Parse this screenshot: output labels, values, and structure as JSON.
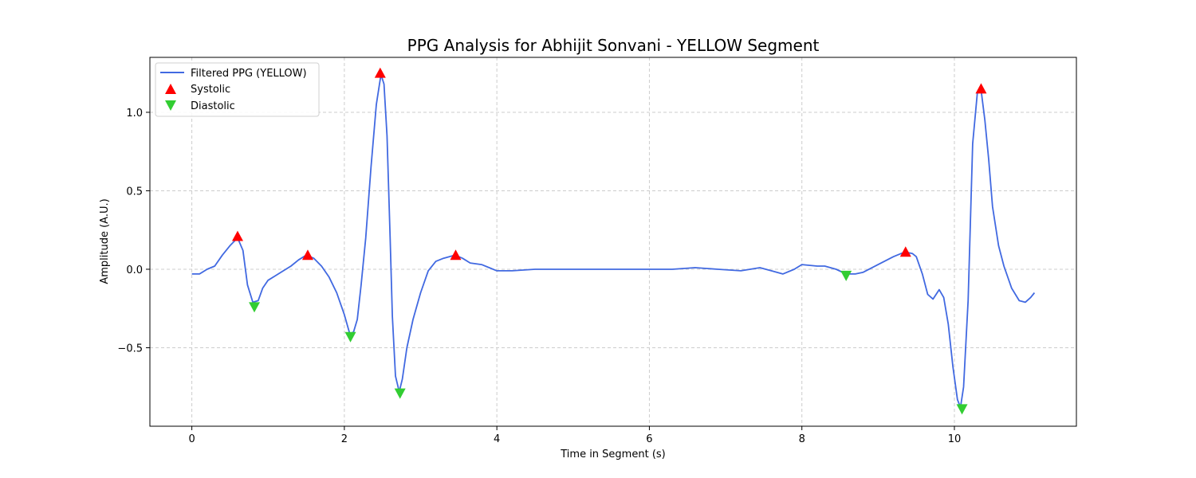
{
  "chart_data": {
    "type": "line",
    "title": "PPG Analysis for Abhijit Sonvani - YELLOW Segment",
    "xlabel": "Time in Segment (s)",
    "ylabel": "Amplitude (A.U.)",
    "xlim": [
      -0.55,
      11.6
    ],
    "ylim": [
      -1.0,
      1.35
    ],
    "x_ticks": [
      0,
      2,
      4,
      6,
      8,
      10
    ],
    "y_ticks": [
      -0.5,
      0.0,
      0.5,
      1.0
    ],
    "x_tick_labels": [
      "0",
      "2",
      "4",
      "6",
      "8",
      "10"
    ],
    "y_tick_labels": [
      "−0.5",
      "0.0",
      "0.5",
      "1.0"
    ],
    "grid": true,
    "legend_position": "top-left",
    "series": [
      {
        "name": "Filtered PPG (YELLOW)",
        "kind": "line",
        "color": "#4169E1",
        "points": [
          [
            0.0,
            -0.03
          ],
          [
            0.1,
            -0.03
          ],
          [
            0.2,
            0.0
          ],
          [
            0.3,
            0.02
          ],
          [
            0.4,
            0.09
          ],
          [
            0.5,
            0.15
          ],
          [
            0.6,
            0.2
          ],
          [
            0.67,
            0.12
          ],
          [
            0.73,
            -0.1
          ],
          [
            0.8,
            -0.21
          ],
          [
            0.87,
            -0.2
          ],
          [
            0.93,
            -0.12
          ],
          [
            1.0,
            -0.07
          ],
          [
            1.1,
            -0.04
          ],
          [
            1.2,
            -0.01
          ],
          [
            1.3,
            0.02
          ],
          [
            1.4,
            0.06
          ],
          [
            1.5,
            0.09
          ],
          [
            1.6,
            0.07
          ],
          [
            1.7,
            0.02
          ],
          [
            1.8,
            -0.05
          ],
          [
            1.9,
            -0.15
          ],
          [
            2.0,
            -0.29
          ],
          [
            2.07,
            -0.41
          ],
          [
            2.12,
            -0.4
          ],
          [
            2.17,
            -0.32
          ],
          [
            2.22,
            -0.1
          ],
          [
            2.28,
            0.2
          ],
          [
            2.35,
            0.65
          ],
          [
            2.42,
            1.05
          ],
          [
            2.48,
            1.24
          ],
          [
            2.52,
            1.18
          ],
          [
            2.56,
            0.85
          ],
          [
            2.6,
            0.2
          ],
          [
            2.63,
            -0.3
          ],
          [
            2.67,
            -0.68
          ],
          [
            2.72,
            -0.78
          ],
          [
            2.76,
            -0.7
          ],
          [
            2.82,
            -0.5
          ],
          [
            2.9,
            -0.32
          ],
          [
            3.0,
            -0.15
          ],
          [
            3.1,
            -0.01
          ],
          [
            3.2,
            0.05
          ],
          [
            3.3,
            0.07
          ],
          [
            3.45,
            0.09
          ],
          [
            3.55,
            0.07
          ],
          [
            3.65,
            0.04
          ],
          [
            3.8,
            0.03
          ],
          [
            3.9,
            0.01
          ],
          [
            4.0,
            -0.01
          ],
          [
            4.2,
            -0.01
          ],
          [
            4.5,
            0.0
          ],
          [
            5.0,
            0.0
          ],
          [
            5.5,
            0.0
          ],
          [
            6.0,
            0.0
          ],
          [
            6.3,
            0.0
          ],
          [
            6.6,
            0.01
          ],
          [
            6.9,
            0.0
          ],
          [
            7.2,
            -0.01
          ],
          [
            7.45,
            0.01
          ],
          [
            7.6,
            -0.01
          ],
          [
            7.75,
            -0.03
          ],
          [
            7.9,
            0.0
          ],
          [
            8.0,
            0.03
          ],
          [
            8.2,
            0.02
          ],
          [
            8.3,
            0.02
          ],
          [
            8.45,
            0.0
          ],
          [
            8.58,
            -0.03
          ],
          [
            8.7,
            -0.03
          ],
          [
            8.8,
            -0.02
          ],
          [
            9.0,
            0.03
          ],
          [
            9.2,
            0.08
          ],
          [
            9.35,
            0.11
          ],
          [
            9.45,
            0.1
          ],
          [
            9.5,
            0.08
          ],
          [
            9.58,
            -0.03
          ],
          [
            9.65,
            -0.16
          ],
          [
            9.72,
            -0.19
          ],
          [
            9.8,
            -0.13
          ],
          [
            9.86,
            -0.18
          ],
          [
            9.92,
            -0.35
          ],
          [
            9.98,
            -0.62
          ],
          [
            10.04,
            -0.83
          ],
          [
            10.08,
            -0.88
          ],
          [
            10.12,
            -0.75
          ],
          [
            10.18,
            -0.2
          ],
          [
            10.24,
            0.8
          ],
          [
            10.3,
            1.12
          ],
          [
            10.35,
            1.14
          ],
          [
            10.4,
            0.95
          ],
          [
            10.45,
            0.7
          ],
          [
            10.5,
            0.4
          ],
          [
            10.58,
            0.15
          ],
          [
            10.65,
            0.02
          ],
          [
            10.75,
            -0.12
          ],
          [
            10.85,
            -0.2
          ],
          [
            10.93,
            -0.21
          ],
          [
            11.0,
            -0.18
          ],
          [
            11.05,
            -0.15
          ]
        ]
      },
      {
        "name": "Systolic",
        "kind": "marker-up",
        "color": "#FF0000",
        "points": [
          [
            0.6,
            0.21
          ],
          [
            1.52,
            0.09
          ],
          [
            2.47,
            1.25
          ],
          [
            3.46,
            0.09
          ],
          [
            9.36,
            0.11
          ],
          [
            10.35,
            1.15
          ]
        ]
      },
      {
        "name": "Diastolic",
        "kind": "marker-down",
        "color": "#32CD32",
        "points": [
          [
            0.82,
            -0.24
          ],
          [
            2.08,
            -0.43
          ],
          [
            2.73,
            -0.79
          ],
          [
            8.58,
            -0.04
          ],
          [
            10.1,
            -0.89
          ]
        ]
      }
    ]
  }
}
